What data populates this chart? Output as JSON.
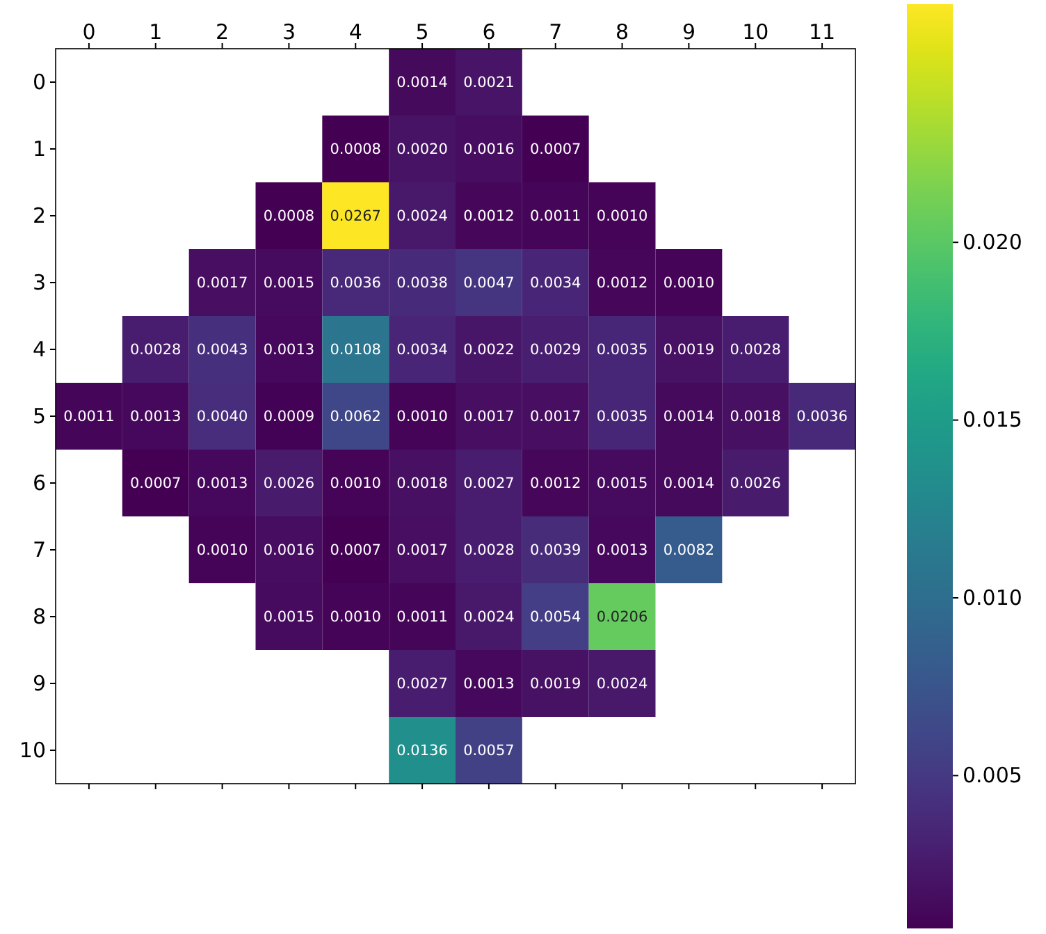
{
  "chart_data": {
    "type": "heatmap",
    "categories": [
      "0",
      "1",
      "2",
      "3",
      "4",
      "5",
      "6",
      "7",
      "8",
      "9",
      "10",
      "11"
    ],
    "y_categories": [
      "0",
      "1",
      "2",
      "3",
      "4",
      "5",
      "6",
      "7",
      "8",
      "9",
      "10"
    ],
    "cells": [
      [
        null,
        null,
        null,
        null,
        null,
        0.0014,
        0.0021,
        null,
        null,
        null,
        null,
        null
      ],
      [
        null,
        null,
        null,
        null,
        0.0008,
        0.002,
        0.0016,
        0.0007,
        null,
        null,
        null,
        null
      ],
      [
        null,
        null,
        null,
        0.0008,
        0.0267,
        0.0024,
        0.0012,
        0.0011,
        0.001,
        null,
        null,
        null
      ],
      [
        null,
        null,
        0.0017,
        0.0015,
        0.0036,
        0.0038,
        0.0047,
        0.0034,
        0.0012,
        0.001,
        null,
        null
      ],
      [
        null,
        0.0028,
        0.0043,
        0.0013,
        0.0108,
        0.0034,
        0.0022,
        0.0029,
        0.0035,
        0.0019,
        0.0028,
        null
      ],
      [
        0.0011,
        0.0013,
        0.004,
        0.0009,
        0.0062,
        0.001,
        0.0017,
        0.0017,
        0.0035,
        0.0014,
        0.0018,
        0.0036
      ],
      [
        null,
        0.0007,
        0.0013,
        0.0026,
        0.001,
        0.0018,
        0.0027,
        0.0012,
        0.0015,
        0.0014,
        0.0026,
        null
      ],
      [
        null,
        null,
        0.001,
        0.0016,
        0.0007,
        0.0017,
        0.0028,
        0.0039,
        0.0013,
        0.0082,
        null,
        null
      ],
      [
        null,
        null,
        null,
        0.0015,
        0.001,
        0.0011,
        0.0024,
        0.0054,
        0.0206,
        null,
        null,
        null
      ],
      [
        null,
        null,
        null,
        null,
        null,
        0.0027,
        0.0013,
        0.0019,
        0.0024,
        null,
        null,
        null
      ],
      [
        null,
        null,
        null,
        null,
        null,
        0.0136,
        0.0057,
        null,
        null,
        null,
        null,
        null
      ]
    ],
    "cell_labels": [
      [
        null,
        null,
        null,
        null,
        null,
        "0.0014",
        "0.0021",
        null,
        null,
        null,
        null,
        null
      ],
      [
        null,
        null,
        null,
        null,
        "0.0008",
        "0.0020",
        "0.0016",
        "0.0007",
        null,
        null,
        null,
        null
      ],
      [
        null,
        null,
        null,
        "0.0008",
        "0.0267",
        "0.0024",
        "0.0012",
        "0.0011",
        "0.0010",
        null,
        null,
        null
      ],
      [
        null,
        null,
        "0.0017",
        "0.0015",
        "0.0036",
        "0.0038",
        "0.0047",
        "0.0034",
        "0.0012",
        "0.0010",
        null,
        null
      ],
      [
        null,
        "0.0028",
        "0.0043",
        "0.0013",
        "0.0108",
        "0.0034",
        "0.0022",
        "0.0029",
        "0.0035",
        "0.0019",
        "0.0028",
        null
      ],
      [
        "0.0011",
        "0.0013",
        "0.0040",
        "0.0009",
        "0.0062",
        "0.0010",
        "0.0017",
        "0.0017",
        "0.0035",
        "0.0014",
        "0.0018",
        "0.0036"
      ],
      [
        null,
        "0.0007",
        "0.0013",
        "0.0026",
        "0.0010",
        "0.0018",
        "0.0027",
        "0.0012",
        "0.0015",
        "0.0014",
        "0.0026",
        null
      ],
      [
        null,
        null,
        "0.0010",
        "0.0016",
        "0.0007",
        "0.0017",
        "0.0028",
        "0.0039",
        "0.0013",
        "0.0082",
        null,
        null
      ],
      [
        null,
        null,
        null,
        "0.0015",
        "0.0010",
        "0.0011",
        "0.0024",
        "0.0054",
        "0.0206",
        null,
        null,
        null
      ],
      [
        null,
        null,
        null,
        null,
        null,
        "0.0027",
        "0.0013",
        "0.0019",
        "0.0024",
        null,
        null,
        null
      ],
      [
        null,
        null,
        null,
        null,
        null,
        "0.0136",
        "0.0057",
        null,
        null,
        null,
        null,
        null
      ]
    ],
    "clim": [
      0.0007,
      0.0267
    ],
    "cticks": [
      {
        "value": 0.005,
        "label": "0.005"
      },
      {
        "value": 0.01,
        "label": "0.010"
      },
      {
        "value": 0.015,
        "label": "0.015"
      },
      {
        "value": 0.02,
        "label": "0.020"
      }
    ]
  }
}
